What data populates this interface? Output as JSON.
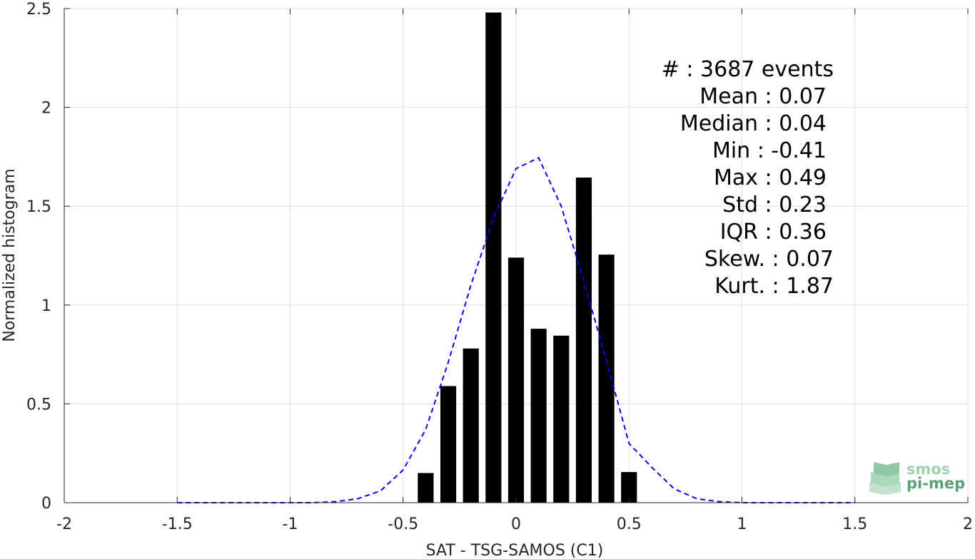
{
  "chart_data": {
    "type": "bar",
    "xlabel": "SAT - TSG-SAMOS (C1)",
    "ylabel": "Normalized histogram",
    "xlim": [
      -2,
      2
    ],
    "ylim": [
      0,
      2.5
    ],
    "x_ticks": [
      -2,
      -1.5,
      -1,
      -0.5,
      0,
      0.5,
      1,
      1.5,
      2
    ],
    "x_tick_labels": [
      "-2",
      "-1.5",
      "-1",
      "-0.5",
      "0",
      "0.5",
      "1",
      "1.5",
      "2"
    ],
    "y_ticks": [
      0,
      0.5,
      1,
      1.5,
      2,
      2.5
    ],
    "y_tick_labels": [
      "0",
      "0.5",
      "1",
      "1.5",
      "2",
      "2.5"
    ],
    "grid": true,
    "bar_color": "#000000",
    "bars": {
      "x": [
        -0.4,
        -0.3,
        -0.2,
        -0.1,
        0.0,
        0.1,
        0.2,
        0.3,
        0.4,
        0.5
      ],
      "values": [
        0.15,
        0.59,
        0.78,
        2.48,
        1.24,
        0.88,
        0.845,
        1.645,
        1.255,
        0.155
      ]
    },
    "fit_curve": {
      "color": "#0000ff",
      "style": "dashed",
      "x": [
        -1.5,
        -1.4,
        -1.3,
        -1.2,
        -1.1,
        -1.0,
        -0.9,
        -0.8,
        -0.7,
        -0.6,
        -0.5,
        -0.4,
        -0.3,
        -0.2,
        -0.1,
        0.0,
        0.1,
        0.2,
        0.3,
        0.4,
        0.5,
        0.6,
        0.7,
        0.8,
        0.9,
        1.0,
        1.1,
        1.2,
        1.3,
        1.4,
        1.5
      ],
      "values": [
        0,
        0,
        0,
        0,
        0,
        0,
        0,
        0.005,
        0.02,
        0.06,
        0.165,
        0.37,
        0.71,
        1.1,
        1.44,
        1.69,
        1.745,
        1.5,
        1.12,
        0.72,
        0.3,
        0.18,
        0.07,
        0.02,
        0.005,
        0,
        0,
        0,
        0,
        0,
        0
      ]
    },
    "stats": [
      "#  : 3687 events",
      "Mean : 0.07",
      "Median : 0.04",
      "Min : -0.41",
      "Max : 0.49",
      "Std : 0.23",
      "IQR : 0.36",
      "Skew. : 0.07",
      "Kurt. : 1.87"
    ]
  },
  "logo": {
    "line1": "smos",
    "line2": "pi-mep",
    "color_dark": "#5aa078",
    "color_light": "#9bd3ae"
  }
}
